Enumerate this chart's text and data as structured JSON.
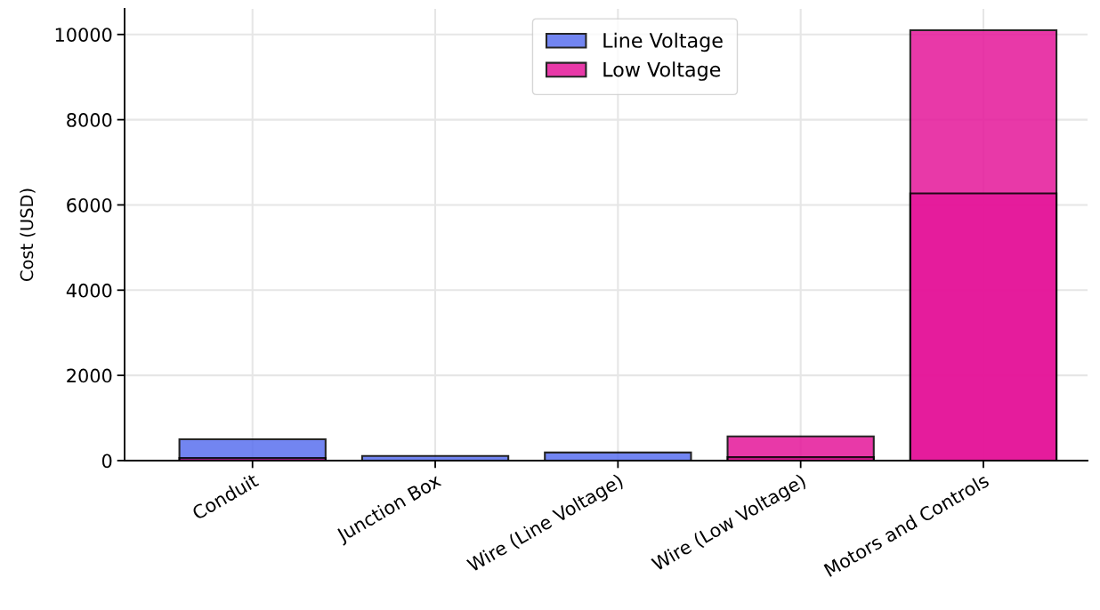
{
  "chart_data": {
    "type": "bar",
    "ylabel": "Cost (USD)",
    "categories": [
      "Conduit",
      "Junction Box",
      "Wire (Line Voltage)",
      "Wire (Low Voltage)",
      "Motors and Controls"
    ],
    "series": [
      {
        "name": "Line Voltage",
        "color": "#5a70ef",
        "values": [
          500,
          110,
          190,
          null,
          null
        ]
      },
      {
        "name": "Low Voltage",
        "color": "#e5179a",
        "values": [
          60,
          null,
          null,
          570,
          10100
        ]
      },
      {
        "color": "#e5179a",
        "values": [
          null,
          null,
          null,
          80,
          6270
        ]
      }
    ],
    "ylim": [
      0,
      10600
    ],
    "yticks": [
      0,
      2000,
      4000,
      6000,
      8000,
      10000
    ],
    "grid": true,
    "legend": "top"
  }
}
